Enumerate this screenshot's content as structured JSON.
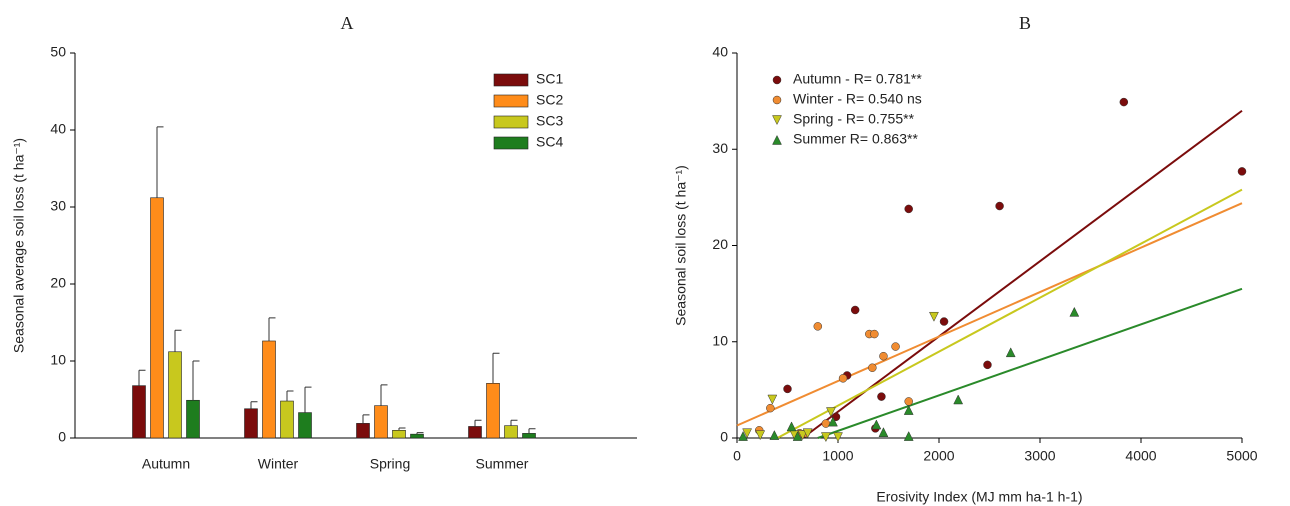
{
  "chart_data": [
    {
      "type": "bar",
      "title": "A",
      "y_label": "Seasonal average soil loss (t ha⁻¹)",
      "categories": [
        "Autumn",
        "Winter",
        "Spring",
        "Summer"
      ],
      "series": [
        {
          "name": "SC1",
          "color": "#7b0c0c",
          "values": [
            6.8,
            3.8,
            1.9,
            1.5
          ],
          "errors": [
            2.0,
            0.9,
            1.1,
            0.8
          ]
        },
        {
          "name": "SC2",
          "color": "#ff8c1a",
          "values": [
            31.2,
            12.6,
            4.2,
            7.1
          ],
          "errors": [
            9.2,
            3.0,
            2.7,
            3.9
          ]
        },
        {
          "name": "SC3",
          "color": "#c8c81e",
          "values": [
            11.2,
            4.8,
            1.0,
            1.6
          ],
          "errors": [
            2.8,
            1.3,
            0.3,
            0.7
          ]
        },
        {
          "name": "SC4",
          "color": "#1e7d1e",
          "values": [
            4.9,
            3.3,
            0.5,
            0.6
          ],
          "errors": [
            5.1,
            3.3,
            0.2,
            0.6
          ]
        }
      ],
      "ylim": [
        0,
        50
      ],
      "yticks": [
        0,
        10,
        20,
        30,
        40,
        50
      ],
      "legend": "upper right"
    },
    {
      "type": "scatter",
      "title": "B",
      "x_label": "Erosivity Index (MJ mm ha-1 h-1)",
      "y_label": "Seasonal soil loss (t ha⁻¹)",
      "series": [
        {
          "name": "Autumn - R= 0.781**",
          "color": "#7b0c0c",
          "marker": "circle",
          "x": [
            500,
            980,
            1090,
            1170,
            1370,
            1430,
            1700,
            2050,
            2480,
            2600,
            3830,
            5000
          ],
          "values": [
            5.1,
            2.2,
            6.5,
            13.3,
            1.0,
            4.3,
            23.8,
            12.1,
            7.6,
            24.1,
            34.9,
            27.7
          ],
          "trend": {
            "x": [
              650,
              5000
            ],
            "values": [
              0,
              34
            ]
          }
        },
        {
          "name": "Winter - R= 0.540 ns",
          "color": "#f08c32",
          "marker": "circle",
          "x": [
            220,
            330,
            800,
            620,
            680,
            1050,
            1310,
            1360,
            1340,
            1450,
            1570,
            1700,
            880
          ],
          "values": [
            0.8,
            3.1,
            11.6,
            0.5,
            0.5,
            6.2,
            10.8,
            10.8,
            7.3,
            8.5,
            9.5,
            3.8,
            1.5
          ],
          "trend": {
            "x": [
              0,
              5000
            ],
            "values": [
              1.3,
              24.4
            ]
          }
        },
        {
          "name": "Spring - R= 0.755**",
          "color": "#c8c81e",
          "marker": "triangle-down",
          "x": [
            100,
            230,
            350,
            570,
            650,
            930,
            880,
            1000,
            1950,
            700
          ],
          "values": [
            0.5,
            0.3,
            4.0,
            0.3,
            0.3,
            2.7,
            0.1,
            0.1,
            12.6,
            0.5
          ],
          "trend": {
            "x": [
              400,
              5000
            ],
            "values": [
              0,
              25.8
            ]
          }
        },
        {
          "name": "Summer R= 0.863**",
          "color": "#2a8a2a",
          "marker": "triangle-up",
          "x": [
            60,
            370,
            540,
            600,
            950,
            1380,
            1450,
            1700,
            1700,
            2190,
            2710,
            3340
          ],
          "values": [
            0.2,
            0.3,
            1.2,
            0.2,
            1.7,
            1.4,
            0.6,
            2.9,
            0.2,
            4.0,
            8.9,
            13.1
          ],
          "trend": {
            "x": [
              800,
              5000
            ],
            "values": [
              0,
              15.5
            ]
          }
        }
      ],
      "xlim": [
        0,
        5000
      ],
      "xticks": [
        0,
        1000,
        2000,
        3000,
        4000,
        5000
      ],
      "ylim": [
        0,
        40
      ],
      "yticks": [
        0,
        10,
        20,
        30,
        40
      ],
      "legend": "upper left"
    }
  ]
}
